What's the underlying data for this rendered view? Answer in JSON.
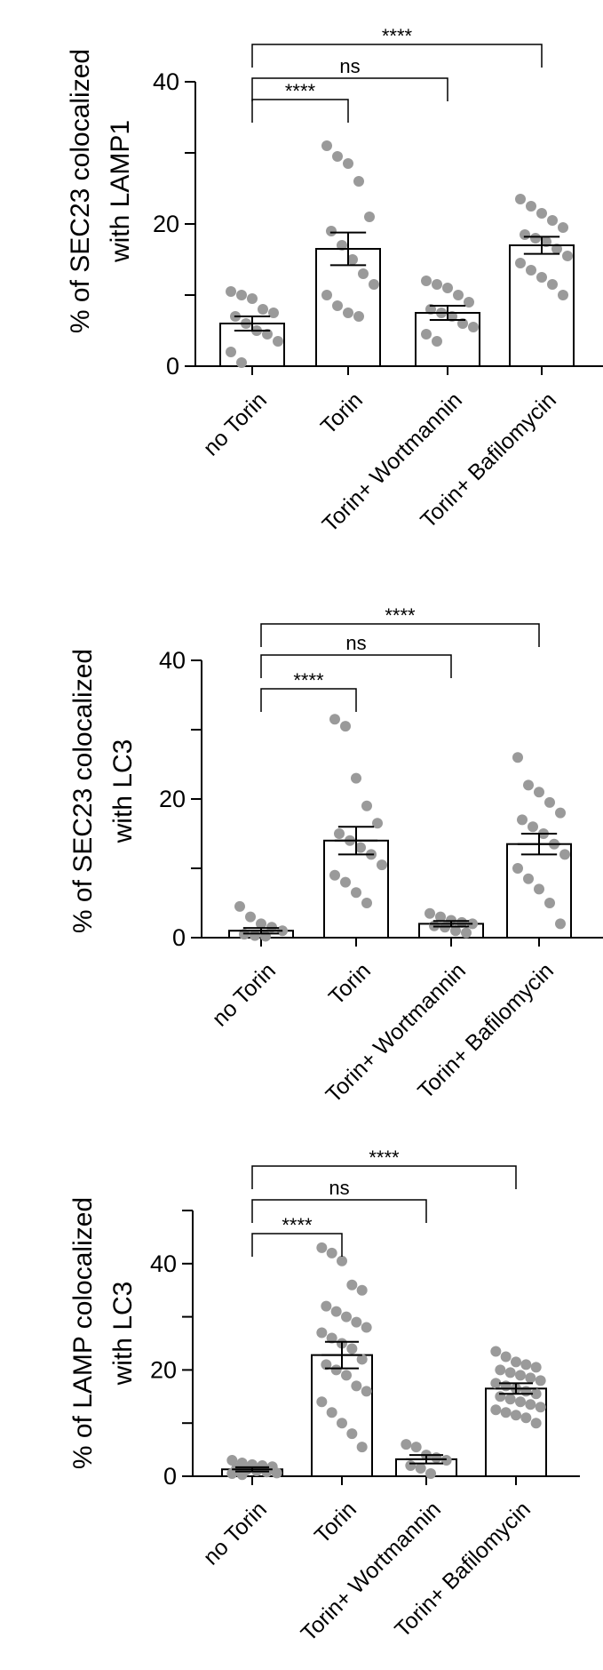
{
  "chart_data": [
    {
      "type": "bar",
      "ylabel_line1": "% of SEC23 colocalized",
      "ylabel_line2": "with LAMP1",
      "categories": [
        "no Torin",
        "Torin",
        "Torin+ Wortmannin",
        "Torin+ Bafilomycin"
      ],
      "ylim": [
        0,
        40
      ],
      "yticks": [
        "0",
        "20",
        "40"
      ],
      "values": [
        6,
        16.5,
        7.5,
        17
      ],
      "sem": [
        1,
        2.3,
        1,
        1.2
      ],
      "points": [
        [
          10.5,
          10,
          9.5,
          8,
          7.5,
          7,
          6,
          5,
          4.5,
          3.5,
          2,
          0.5
        ],
        [
          31,
          29.5,
          28.5,
          26,
          21,
          19,
          17,
          15,
          13,
          11.5,
          10,
          8.5,
          7.5,
          7
        ],
        [
          12,
          11.5,
          11,
          10,
          9,
          8,
          7.5,
          7,
          6,
          5.5,
          4.5,
          3.5
        ],
        [
          23.5,
          22.5,
          21.5,
          20.5,
          19.5,
          18.5,
          18,
          17.5,
          16.5,
          15.5,
          14.5,
          13.5,
          12.5,
          11.5,
          10
        ]
      ],
      "comparisons": [
        {
          "from": 0,
          "to": 1,
          "label": "****"
        },
        {
          "from": 0,
          "to": 2,
          "label": "ns"
        },
        {
          "from": 0,
          "to": 3,
          "label": "****"
        }
      ]
    },
    {
      "type": "bar",
      "ylabel_line1": "% of SEC23 colocalized",
      "ylabel_line2": "with LC3",
      "categories": [
        "no Torin",
        "Torin",
        "Torin+ Wortmannin",
        "Torin+ Bafilomycin"
      ],
      "ylim": [
        0,
        40
      ],
      "yticks": [
        "0",
        "20",
        "40"
      ],
      "values": [
        1,
        14,
        2,
        13.5
      ],
      "sem": [
        0.4,
        2,
        0.4,
        1.5
      ],
      "points": [
        [
          4.5,
          3,
          2,
          1.5,
          1,
          0.5,
          0.3,
          0.2
        ],
        [
          31.5,
          30.5,
          23,
          19,
          16.5,
          15,
          14,
          13,
          12,
          10.5,
          9,
          8,
          6.5,
          5
        ],
        [
          3.5,
          3,
          2.5,
          2.2,
          2,
          1.7,
          1.5,
          1,
          0.7
        ],
        [
          26,
          22,
          21,
          19.5,
          18,
          17,
          16,
          15,
          13.5,
          12,
          10,
          8.5,
          7,
          5,
          2
        ]
      ],
      "comparisons": [
        {
          "from": 0,
          "to": 1,
          "label": "****"
        },
        {
          "from": 0,
          "to": 2,
          "label": "ns"
        },
        {
          "from": 0,
          "to": 3,
          "label": "****"
        }
      ]
    },
    {
      "type": "bar",
      "ylabel_line1": "% of LAMP colocalized",
      "ylabel_line2": "with LC3",
      "categories": [
        "no Torin",
        "Torin",
        "Torin+ Wortmannin",
        "Torin+ Bafilomycin"
      ],
      "ylim": [
        0,
        50
      ],
      "yticks": [
        "0",
        "20",
        "40"
      ],
      "values": [
        1.3,
        22.8,
        3.2,
        16.5
      ],
      "sem": [
        0.4,
        2.5,
        0.8,
        1
      ],
      "points": [
        [
          3,
          2.5,
          2.2,
          2,
          1.8,
          1.5,
          1.2,
          1,
          0.8,
          0.6,
          0.5,
          0.3
        ],
        [
          43,
          42,
          40.5,
          36,
          35,
          32,
          31,
          30,
          29,
          28,
          27,
          26,
          25,
          24,
          22,
          21,
          20,
          19,
          17,
          16,
          14,
          12,
          10,
          8,
          5.5
        ],
        [
          6,
          5.5,
          4,
          3.5,
          3,
          2,
          1.5,
          0.5
        ],
        [
          23.5,
          22.5,
          21.5,
          21,
          20.5,
          20,
          19.5,
          19,
          18.5,
          18,
          17.5,
          17,
          16.5,
          16,
          15.5,
          15,
          14.5,
          14,
          13.5,
          13,
          12.5,
          12,
          11.5,
          11,
          10
        ]
      ],
      "comparisons": [
        {
          "from": 0,
          "to": 1,
          "label": "****"
        },
        {
          "from": 0,
          "to": 2,
          "label": "ns"
        },
        {
          "from": 0,
          "to": 3,
          "label": "****"
        }
      ]
    }
  ]
}
